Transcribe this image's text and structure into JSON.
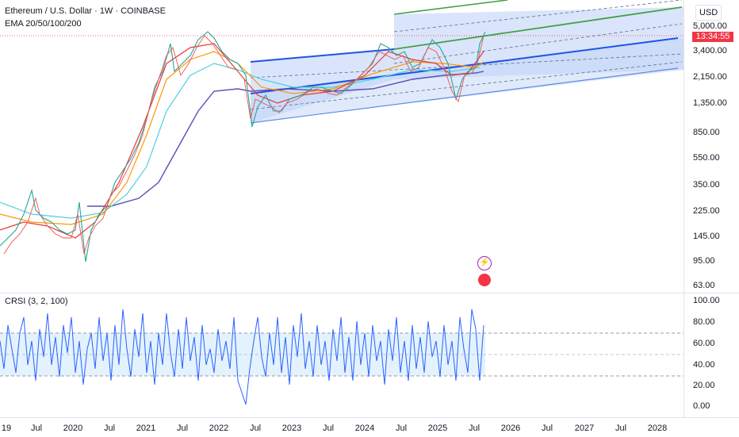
{
  "header": {
    "symbol": "Ethereum / U.S. Dollar · 1W · COINBASE",
    "indicator": "EMA 20/50/100/200"
  },
  "oscillator": {
    "label": "CRSI (3, 2, 100)"
  },
  "price_axis": {
    "currency": "USD",
    "ticks": [
      "5,000.00",
      "3,400.00",
      "2,150.00",
      "1,350.00",
      "850.00",
      "550.00",
      "350.00",
      "225.00",
      "145.00",
      "95.00",
      "63.00"
    ],
    "countdown": "13:34:55"
  },
  "osc_axis": {
    "ticks": [
      "100.00",
      "80.00",
      "60.00",
      "40.00",
      "20.00",
      "0.00"
    ]
  },
  "time_axis": {
    "ticks": [
      "19",
      "Jul",
      "2020",
      "Jul",
      "2021",
      "Jul",
      "2022",
      "Jul",
      "2023",
      "Jul",
      "2024",
      "Jul",
      "2025",
      "Jul",
      "2026",
      "Jul",
      "2027",
      "Jul",
      "2028"
    ]
  },
  "colors": {
    "ema20": "#e53935",
    "ema50": "#ff9800",
    "ema100": "#4dd0e1",
    "ema200": "#5c4fb8",
    "channel": "#1e53e5",
    "channel_upper": "#43a047",
    "osc_line": "#2962ff",
    "band_fill": "#e3f2fd",
    "countdown_bg": "#f23645"
  },
  "icons": [
    "lightning-icon",
    "us-flag-icon"
  ]
}
